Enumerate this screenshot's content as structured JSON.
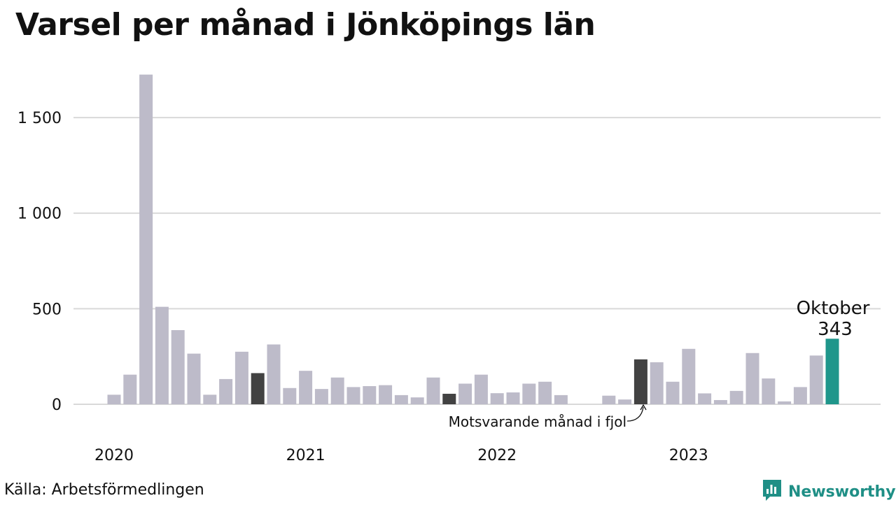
{
  "title": "Varsel per månad i Jönköpings län",
  "source": "Källa: Arbetsförmedlingen",
  "brand": "Newsworthy",
  "colors": {
    "bar": "#bdbbc9",
    "highlight": "#424242",
    "current": "#1f968b",
    "grid": "#d9d9d9",
    "text": "#111111"
  },
  "chart_data": {
    "type": "bar",
    "title": "Varsel per månad i Jönköpings län",
    "xlabel": "",
    "ylabel": "",
    "ylim": [
      0,
      1720
    ],
    "yticks": [
      0,
      500,
      1000,
      1500
    ],
    "ytick_labels": [
      "0",
      "500",
      "1 000",
      "1 500"
    ],
    "year_labels": [
      {
        "label": "2020",
        "index": 0
      },
      {
        "label": "2021",
        "index": 12
      },
      {
        "label": "2022",
        "index": 24
      },
      {
        "label": "2023",
        "index": 36
      }
    ],
    "categories": [
      "2020-01",
      "2020-02",
      "2020-03",
      "2020-04",
      "2020-05",
      "2020-06",
      "2020-07",
      "2020-08",
      "2020-09",
      "2020-10",
      "2020-11",
      "2020-12",
      "2021-01",
      "2021-02",
      "2021-03",
      "2021-04",
      "2021-05",
      "2021-06",
      "2021-07",
      "2021-08",
      "2021-09",
      "2021-10",
      "2021-11",
      "2021-12",
      "2022-01",
      "2022-02",
      "2022-03",
      "2022-04",
      "2022-05",
      "2022-06",
      "2022-07",
      "2022-08",
      "2022-09",
      "2022-10",
      "2022-11",
      "2022-12",
      "2023-01",
      "2023-02",
      "2023-03",
      "2023-04",
      "2023-05",
      "2023-06",
      "2023-07",
      "2023-08",
      "2023-09",
      "2023-10"
    ],
    "values": [
      50,
      155,
      1725,
      510,
      388,
      265,
      50,
      132,
      275,
      163,
      313,
      85,
      175,
      80,
      140,
      90,
      95,
      100,
      48,
      36,
      140,
      55,
      108,
      155,
      58,
      62,
      108,
      118,
      48,
      0,
      0,
      45,
      25,
      235,
      220,
      118,
      290,
      57,
      22,
      70,
      268,
      135,
      15,
      90,
      255,
      343
    ],
    "highlighted_indices": [
      9,
      21,
      33
    ],
    "current_index": 45,
    "annotations": {
      "previous_year": "Motsvarande månad i fjol",
      "current_month": "Oktober",
      "current_value": "343"
    },
    "grid": true
  }
}
